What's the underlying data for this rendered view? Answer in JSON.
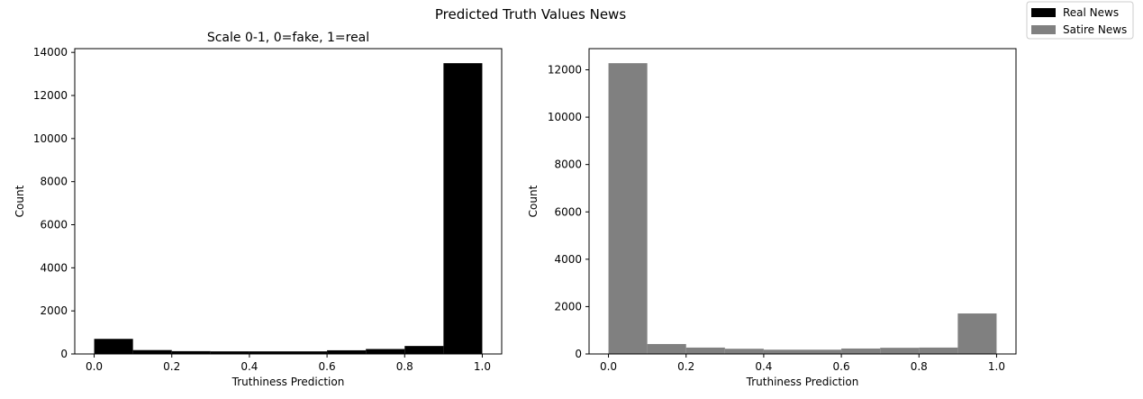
{
  "figure": {
    "suptitle": "Predicted Truth Values News"
  },
  "legend": {
    "placement": "top-right",
    "entries": [
      {
        "label": "Real News",
        "color": "#000000"
      },
      {
        "label": "Satire News",
        "color": "#808080"
      }
    ]
  },
  "chart_data": [
    {
      "type": "bar",
      "subtype": "histogram",
      "title": "Scale 0-1, 0=fake, 1=real",
      "xlabel": "Truthiness Prediction",
      "ylabel": "Count",
      "series_name": "Real News",
      "color": "#000000",
      "bin_edges": [
        0.0,
        0.1,
        0.2,
        0.3,
        0.4,
        0.5,
        0.6,
        0.7,
        0.8,
        0.9,
        1.0
      ],
      "values": [
        700,
        180,
        130,
        120,
        120,
        120,
        170,
        230,
        370,
        13500
      ],
      "xlim": [
        -0.05,
        1.05
      ],
      "ylim": [
        0,
        14175
      ],
      "xticks": [
        0.0,
        0.2,
        0.4,
        0.6,
        0.8,
        1.0
      ],
      "xtick_labels": [
        "0.0",
        "0.2",
        "0.4",
        "0.6",
        "0.8",
        "1.0"
      ],
      "yticks": [
        0,
        2000,
        4000,
        6000,
        8000,
        10000,
        12000,
        14000
      ],
      "ytick_labels": [
        "0",
        "2000",
        "4000",
        "6000",
        "8000",
        "10000",
        "12000",
        "14000"
      ],
      "grid": false
    },
    {
      "type": "bar",
      "subtype": "histogram",
      "title": "",
      "xlabel": "Truthiness Prediction",
      "ylabel": "Count",
      "series_name": "Satire News",
      "color": "#808080",
      "bin_edges": [
        0.0,
        0.1,
        0.2,
        0.3,
        0.4,
        0.5,
        0.6,
        0.7,
        0.8,
        0.9,
        1.0
      ],
      "values": [
        12280,
        420,
        270,
        220,
        180,
        180,
        230,
        260,
        270,
        1710
      ],
      "xlim": [
        -0.05,
        1.05
      ],
      "ylim": [
        0,
        12894
      ],
      "xticks": [
        0.0,
        0.2,
        0.4,
        0.6,
        0.8,
        1.0
      ],
      "xtick_labels": [
        "0.0",
        "0.2",
        "0.4",
        "0.6",
        "0.8",
        "1.0"
      ],
      "yticks": [
        0,
        2000,
        4000,
        6000,
        8000,
        10000,
        12000
      ],
      "ytick_labels": [
        "0",
        "2000",
        "4000",
        "6000",
        "8000",
        "10000",
        "12000"
      ],
      "grid": false
    }
  ]
}
